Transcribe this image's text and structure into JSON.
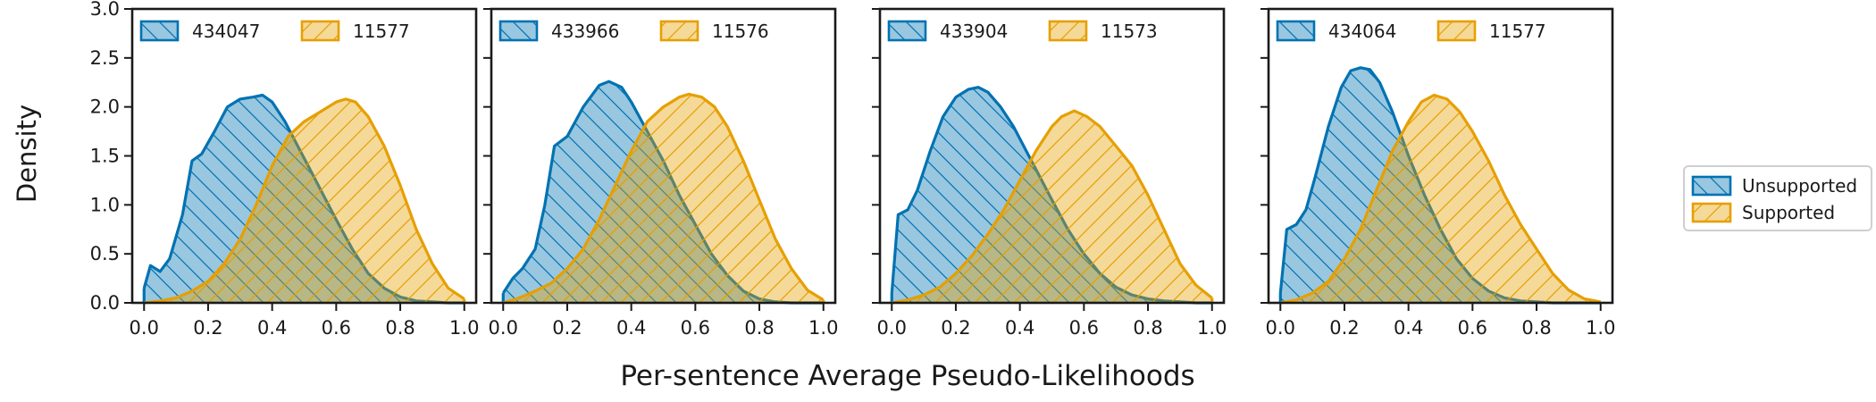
{
  "figure": {
    "ylabel": "Density",
    "xlabel": "Per-sentence Average Pseudo-Likelihoods",
    "legend": {
      "placement": "right",
      "entries": [
        {
          "name": "Unsupported",
          "color": "#0072b2"
        },
        {
          "name": "Supported",
          "color": "#e69f00"
        }
      ]
    }
  },
  "chart_data": [
    {
      "type": "area",
      "xlim": [
        0,
        1
      ],
      "ylim": [
        0,
        3
      ],
      "xticks": [
        "0.0",
        "0.2",
        "0.4",
        "0.6",
        "0.8",
        "1.0"
      ],
      "yticks": [
        "0.0",
        "0.5",
        "1.0",
        "1.5",
        "2.0",
        "2.5",
        "3.0"
      ],
      "legend": [
        "434047",
        "11577"
      ],
      "series": [
        {
          "name": "Unsupported",
          "color": "#0072b2",
          "x": [
            0.0,
            0.02,
            0.05,
            0.08,
            0.12,
            0.15,
            0.18,
            0.22,
            0.26,
            0.3,
            0.34,
            0.37,
            0.4,
            0.44,
            0.48,
            0.52,
            0.56,
            0.6,
            0.65,
            0.7,
            0.75,
            0.8,
            0.85,
            0.9,
            0.95,
            1.0
          ],
          "y": [
            0.15,
            0.38,
            0.32,
            0.45,
            0.9,
            1.45,
            1.52,
            1.75,
            2.0,
            2.08,
            2.1,
            2.12,
            2.05,
            1.85,
            1.6,
            1.35,
            1.1,
            0.85,
            0.55,
            0.3,
            0.15,
            0.06,
            0.02,
            0.01,
            0.0,
            0.0
          ]
        },
        {
          "name": "Supported",
          "color": "#e69f00",
          "x": [
            0.0,
            0.05,
            0.1,
            0.15,
            0.2,
            0.25,
            0.3,
            0.35,
            0.4,
            0.45,
            0.5,
            0.55,
            0.6,
            0.63,
            0.66,
            0.7,
            0.75,
            0.8,
            0.85,
            0.9,
            0.95,
            1.0
          ],
          "y": [
            0.0,
            0.02,
            0.05,
            0.12,
            0.22,
            0.4,
            0.65,
            1.0,
            1.4,
            1.7,
            1.85,
            1.95,
            2.05,
            2.08,
            2.05,
            1.9,
            1.6,
            1.2,
            0.75,
            0.4,
            0.15,
            0.04
          ]
        }
      ]
    },
    {
      "type": "area",
      "xlim": [
        0,
        1
      ],
      "ylim": [
        0,
        3
      ],
      "xticks": [
        "0.0",
        "0.2",
        "0.4",
        "0.6",
        "0.8",
        "1.0"
      ],
      "legend": [
        "433966",
        "11576"
      ],
      "series": [
        {
          "name": "Unsupported",
          "color": "#0072b2",
          "x": [
            0.0,
            0.03,
            0.06,
            0.1,
            0.13,
            0.16,
            0.2,
            0.25,
            0.3,
            0.33,
            0.37,
            0.4,
            0.45,
            0.5,
            0.55,
            0.6,
            0.65,
            0.7,
            0.75,
            0.8,
            0.85,
            0.9,
            0.95,
            1.0
          ],
          "y": [
            0.1,
            0.25,
            0.35,
            0.55,
            1.0,
            1.6,
            1.7,
            2.0,
            2.22,
            2.26,
            2.2,
            2.05,
            1.75,
            1.45,
            1.1,
            0.8,
            0.5,
            0.28,
            0.12,
            0.04,
            0.01,
            0.0,
            0.0,
            0.0
          ]
        },
        {
          "name": "Supported",
          "color": "#e69f00",
          "x": [
            0.0,
            0.05,
            0.1,
            0.15,
            0.2,
            0.25,
            0.3,
            0.35,
            0.4,
            0.45,
            0.5,
            0.55,
            0.58,
            0.62,
            0.66,
            0.7,
            0.75,
            0.8,
            0.85,
            0.9,
            0.95,
            1.0
          ],
          "y": [
            0.0,
            0.05,
            0.12,
            0.2,
            0.35,
            0.55,
            0.85,
            1.2,
            1.55,
            1.85,
            2.0,
            2.1,
            2.13,
            2.1,
            2.0,
            1.8,
            1.45,
            1.05,
            0.65,
            0.35,
            0.13,
            0.03
          ]
        }
      ]
    },
    {
      "type": "area",
      "xlim": [
        0,
        1
      ],
      "ylim": [
        0,
        3
      ],
      "xticks": [
        "0.0",
        "0.2",
        "0.4",
        "0.6",
        "0.8",
        "1.0"
      ],
      "legend": [
        "433904",
        "11573"
      ],
      "series": [
        {
          "name": "Unsupported",
          "color": "#0072b2",
          "x": [
            0.0,
            0.02,
            0.05,
            0.08,
            0.12,
            0.16,
            0.2,
            0.24,
            0.27,
            0.3,
            0.34,
            0.38,
            0.42,
            0.46,
            0.5,
            0.55,
            0.6,
            0.65,
            0.7,
            0.75,
            0.8,
            0.85,
            0.9,
            0.95,
            1.0
          ],
          "y": [
            0.1,
            0.9,
            0.95,
            1.15,
            1.55,
            1.9,
            2.1,
            2.18,
            2.2,
            2.15,
            2.0,
            1.8,
            1.55,
            1.3,
            1.05,
            0.75,
            0.5,
            0.3,
            0.16,
            0.08,
            0.04,
            0.02,
            0.01,
            0.0,
            0.0
          ]
        },
        {
          "name": "Supported",
          "color": "#e69f00",
          "x": [
            0.0,
            0.05,
            0.1,
            0.15,
            0.2,
            0.25,
            0.3,
            0.35,
            0.4,
            0.45,
            0.5,
            0.53,
            0.57,
            0.61,
            0.65,
            0.7,
            0.75,
            0.8,
            0.85,
            0.9,
            0.95,
            1.0
          ],
          "y": [
            0.0,
            0.03,
            0.08,
            0.16,
            0.3,
            0.48,
            0.7,
            0.95,
            1.25,
            1.55,
            1.8,
            1.9,
            1.96,
            1.9,
            1.8,
            1.6,
            1.4,
            1.1,
            0.75,
            0.4,
            0.18,
            0.05
          ]
        }
      ]
    },
    {
      "type": "area",
      "xlim": [
        0,
        1
      ],
      "ylim": [
        0,
        3
      ],
      "xticks": [
        "0.0",
        "0.2",
        "0.4",
        "0.6",
        "0.8",
        "1.0"
      ],
      "legend": [
        "434064",
        "11577"
      ],
      "series": [
        {
          "name": "Unsupported",
          "color": "#0072b2",
          "x": [
            0.0,
            0.02,
            0.05,
            0.08,
            0.11,
            0.15,
            0.19,
            0.22,
            0.25,
            0.28,
            0.31,
            0.35,
            0.4,
            0.45,
            0.5,
            0.55,
            0.6,
            0.65,
            0.7,
            0.75,
            0.8,
            0.85,
            0.9,
            0.95,
            1.0
          ],
          "y": [
            0.1,
            0.75,
            0.8,
            0.95,
            1.3,
            1.8,
            2.2,
            2.37,
            2.4,
            2.38,
            2.25,
            1.95,
            1.5,
            1.1,
            0.75,
            0.45,
            0.25,
            0.12,
            0.05,
            0.02,
            0.01,
            0.0,
            0.0,
            0.0,
            0.0
          ]
        },
        {
          "name": "Supported",
          "color": "#e69f00",
          "x": [
            0.0,
            0.05,
            0.1,
            0.15,
            0.2,
            0.25,
            0.3,
            0.35,
            0.4,
            0.44,
            0.48,
            0.52,
            0.56,
            0.6,
            0.65,
            0.7,
            0.75,
            0.8,
            0.85,
            0.9,
            0.95,
            1.0
          ],
          "y": [
            0.0,
            0.03,
            0.1,
            0.22,
            0.45,
            0.75,
            1.15,
            1.55,
            1.85,
            2.05,
            2.12,
            2.08,
            1.95,
            1.75,
            1.45,
            1.1,
            0.8,
            0.55,
            0.3,
            0.13,
            0.04,
            0.01
          ]
        }
      ]
    }
  ]
}
